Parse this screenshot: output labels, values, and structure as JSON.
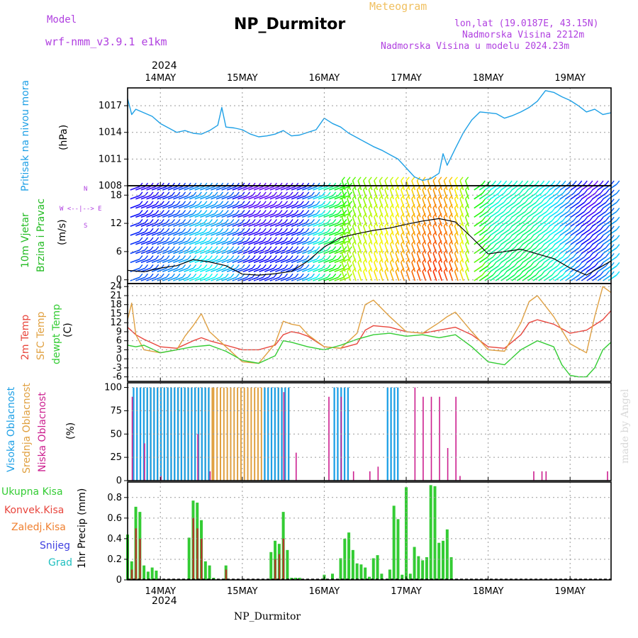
{
  "header": {
    "model_label": "Model",
    "model_value": "wrf-nmm_v3.9.1 e1km",
    "meteogram": "Meteogram",
    "title": "NP_Durmitor",
    "lonlat": "lon,lat (19.0187E, 43.15N)",
    "altitude": "Nadmorska Visina 2212m",
    "altitude_model": "Nadmorska Visina u modelu 2024.23m",
    "footer": "NP_Durmitor",
    "credit": "made by Angel",
    "year": "2024"
  },
  "colors": {
    "pressure": "#1ea0e6",
    "wind_label": "#22bb22",
    "t2m": "#e8453c",
    "sfc": "#e0a040",
    "dewpt": "#33cc33",
    "high_cloud": "#1ea0e6",
    "mid_cloud": "#e0a040",
    "low_cloud": "#cc1f8f",
    "purple_text": "#b040e0",
    "orange_text": "#f0c060"
  },
  "labels": {
    "pressure": [
      "Pritisak na nivou mora",
      "(hPa)"
    ],
    "wind": [
      "10m Vjetar",
      "Brzina i Pravac",
      "(m/s)"
    ],
    "wind_compass": [
      "N",
      "W <--|--> E",
      "S"
    ],
    "temp": [
      "2m Temp",
      "SFC Temp",
      "dewpt Temp",
      "(C)"
    ],
    "cloud": [
      "Visoka Oblacnost",
      "Srednja Oblacnost",
      "Niska Oblacnost",
      "(%)"
    ],
    "precip_legend": [
      "Ukupna Kisa",
      "Konvek.Kisa",
      "Zaledj.Kisa",
      "Snijeg",
      "Grad"
    ],
    "precip_axis": "1hr Precip (mm)"
  },
  "chart_data": [
    {
      "type": "line",
      "panel": "pressure",
      "ylabel": "(hPa)",
      "ylim": [
        1008,
        1019
      ],
      "yticks": [
        1008,
        1011,
        1014,
        1017
      ],
      "x_ticks": [
        "14MAY",
        "15MAY",
        "16MAY",
        "17MAY",
        "18MAY",
        "19MAY"
      ],
      "x_day_start": 13.6,
      "x_day_end": 19.5,
      "series": [
        {
          "name": "Pritisak na nivou mora",
          "x": [
            13.6,
            13.65,
            13.7,
            13.8,
            13.9,
            14.0,
            14.1,
            14.2,
            14.3,
            14.4,
            14.5,
            14.6,
            14.7,
            14.75,
            14.8,
            14.9,
            15.0,
            15.1,
            15.2,
            15.3,
            15.4,
            15.5,
            15.6,
            15.7,
            15.8,
            15.9,
            16.0,
            16.1,
            16.2,
            16.3,
            16.4,
            16.5,
            16.6,
            16.7,
            16.8,
            16.9,
            17.0,
            17.1,
            17.2,
            17.3,
            17.4,
            17.45,
            17.5,
            17.6,
            17.7,
            17.8,
            17.9,
            18.0,
            18.1,
            18.2,
            18.3,
            18.4,
            18.5,
            18.6,
            18.7,
            18.8,
            18.9,
            19.0,
            19.1,
            19.2,
            19.3,
            19.4,
            19.5
          ],
          "values": [
            1017.8,
            1016.0,
            1016.6,
            1016.2,
            1015.8,
            1015.0,
            1014.5,
            1014.0,
            1014.2,
            1013.9,
            1013.8,
            1014.2,
            1014.8,
            1016.8,
            1014.6,
            1014.5,
            1014.3,
            1013.8,
            1013.5,
            1013.6,
            1013.8,
            1014.2,
            1013.6,
            1013.7,
            1014.0,
            1014.3,
            1015.6,
            1015.0,
            1014.6,
            1013.9,
            1013.4,
            1012.9,
            1012.4,
            1012.0,
            1011.5,
            1011.0,
            1010.0,
            1009.0,
            1008.6,
            1008.8,
            1009.4,
            1011.6,
            1010.3,
            1012.2,
            1014.0,
            1015.4,
            1016.3,
            1016.2,
            1016.1,
            1015.6,
            1015.9,
            1016.3,
            1016.8,
            1017.5,
            1018.7,
            1018.5,
            1018.0,
            1017.6,
            1017.0,
            1016.3,
            1016.6,
            1016.0,
            1016.2
          ]
        }
      ]
    },
    {
      "type": "line",
      "panel": "wind",
      "ylabel": "(m/s)",
      "ylim": [
        -0.8,
        20
      ],
      "yticks": [
        0,
        6,
        12,
        18
      ],
      "series": [
        {
          "name": "10m Vjetar",
          "x": [
            13.6,
            13.8,
            14.0,
            14.2,
            14.4,
            14.6,
            14.8,
            15.0,
            15.2,
            15.4,
            15.6,
            15.8,
            16.0,
            16.2,
            16.4,
            16.6,
            16.8,
            17.0,
            17.2,
            17.4,
            17.6,
            17.8,
            18.0,
            18.2,
            18.4,
            18.6,
            18.8,
            19.0,
            19.2,
            19.4,
            19.5
          ],
          "values": [
            2.0,
            1.7,
            2.5,
            3.0,
            4.3,
            3.8,
            3.0,
            1.2,
            1.0,
            1.3,
            1.8,
            4.0,
            7.0,
            9.0,
            9.8,
            10.5,
            11.0,
            11.8,
            12.5,
            13.0,
            12.3,
            9.0,
            5.5,
            6.0,
            6.5,
            5.5,
            4.5,
            2.5,
            1.0,
            3.0,
            4.0
          ]
        }
      ]
    },
    {
      "type": "line",
      "panel": "temperature",
      "ylabel": "(C)",
      "ylim": [
        -7.5,
        25
      ],
      "yticks": [
        -6,
        -3,
        0,
        3,
        6,
        9,
        12,
        15,
        18,
        21,
        24
      ],
      "series": [
        {
          "name": "2m Temp",
          "x": [
            13.6,
            13.7,
            13.8,
            14.0,
            14.2,
            14.4,
            14.5,
            14.6,
            14.8,
            15.0,
            15.2,
            15.4,
            15.5,
            15.6,
            15.7,
            15.8,
            16.0,
            16.2,
            16.4,
            16.5,
            16.6,
            16.8,
            17.0,
            17.2,
            17.4,
            17.5,
            17.6,
            17.8,
            18.0,
            18.2,
            18.4,
            18.5,
            18.6,
            18.8,
            19.0,
            19.2,
            19.4,
            19.5
          ],
          "values": [
            10.5,
            8.0,
            6.5,
            4.0,
            3.5,
            6.0,
            7.0,
            6.0,
            4.5,
            3.0,
            3.0,
            4.5,
            8.0,
            9.0,
            8.5,
            7.5,
            4.0,
            3.5,
            5.0,
            9.5,
            11.0,
            10.5,
            9.0,
            8.5,
            9.5,
            10.0,
            10.5,
            8.0,
            4.0,
            3.5,
            8.0,
            12.0,
            13.0,
            11.5,
            8.5,
            9.5,
            13.0,
            16.0
          ]
        },
        {
          "name": "SFC Temp",
          "x": [
            13.6,
            13.65,
            13.7,
            13.8,
            14.0,
            14.2,
            14.3,
            14.4,
            14.5,
            14.6,
            14.8,
            15.0,
            15.2,
            15.4,
            15.5,
            15.6,
            15.7,
            15.8,
            16.0,
            16.2,
            16.4,
            16.5,
            16.6,
            16.8,
            17.0,
            17.2,
            17.4,
            17.5,
            17.6,
            17.8,
            18.0,
            18.2,
            18.4,
            18.5,
            18.6,
            18.8,
            19.0,
            19.2,
            19.3,
            19.4,
            19.5
          ],
          "values": [
            13.0,
            18.5,
            8.0,
            3.0,
            2.0,
            3.0,
            7.5,
            11.0,
            15.0,
            9.0,
            4.0,
            -1.0,
            -1.5,
            5.0,
            12.5,
            11.5,
            11.0,
            8.0,
            4.0,
            3.5,
            8.5,
            18.0,
            19.5,
            14.0,
            9.0,
            8.5,
            12.0,
            14.0,
            15.5,
            9.0,
            3.0,
            2.5,
            12.0,
            19.0,
            21.0,
            14.0,
            5.0,
            2.0,
            14.0,
            24.0,
            22.0
          ]
        },
        {
          "name": "dewpt Temp",
          "x": [
            13.6,
            13.7,
            13.8,
            14.0,
            14.2,
            14.4,
            14.6,
            14.8,
            15.0,
            15.2,
            15.4,
            15.5,
            15.6,
            15.8,
            16.0,
            16.2,
            16.4,
            16.6,
            16.8,
            17.0,
            17.2,
            17.4,
            17.6,
            17.8,
            18.0,
            18.2,
            18.4,
            18.6,
            18.8,
            18.9,
            19.0,
            19.1,
            19.2,
            19.3,
            19.4,
            19.5
          ],
          "values": [
            4.5,
            4.0,
            4.5,
            2.0,
            3.0,
            4.0,
            4.5,
            2.5,
            -0.5,
            -1.5,
            1.0,
            6.0,
            5.5,
            4.0,
            3.0,
            4.5,
            6.5,
            8.0,
            8.5,
            7.5,
            8.0,
            7.0,
            8.0,
            4.0,
            -1.0,
            -2.0,
            3.0,
            6.0,
            4.0,
            -2.0,
            -5.5,
            -6.0,
            -6.0,
            -3.0,
            3.0,
            5.5
          ]
        }
      ]
    },
    {
      "type": "bar",
      "panel": "cloud",
      "ylabel": "(%)",
      "ylim": [
        0,
        105
      ],
      "yticks": [
        0,
        25,
        50,
        75,
        100
      ],
      "series": [
        {
          "name": "Visoka Oblacnost",
          "ranges": [
            [
              13.65,
              14.6
            ],
            [
              15.25,
              15.55
            ],
            [
              16.1,
              16.3
            ],
            [
              16.75,
              16.9
            ]
          ],
          "value": 100
        },
        {
          "name": "Srednja Oblacnost",
          "ranges": [
            [
              13.8,
              14.65
            ],
            [
              14.65,
              15.3
            ],
            [
              15.4,
              15.6
            ]
          ],
          "value": 100
        },
        {
          "name": "Niska Oblacnost",
          "x": [
            13.65,
            13.8,
            14.0,
            14.45,
            14.6,
            15.5,
            15.65,
            16.05,
            16.2,
            16.35,
            16.55,
            16.65,
            17.1,
            17.2,
            17.3,
            17.4,
            17.5,
            17.6,
            17.65,
            18.55,
            18.65,
            18.7,
            19.45
          ],
          "values": [
            90,
            40,
            5,
            50,
            10,
            95,
            30,
            90,
            90,
            10,
            10,
            15,
            100,
            90,
            90,
            90,
            35,
            90,
            5,
            10,
            10,
            10,
            10
          ]
        }
      ]
    },
    {
      "type": "bar",
      "panel": "precip",
      "ylabel": "1hr Precip (mm)",
      "ylim": [
        0,
        0.95
      ],
      "yticks": [
        0,
        0.2,
        0.4,
        0.6,
        0.8
      ],
      "series": [
        {
          "name": "Ukupna Kisa",
          "x": [
            13.6,
            13.65,
            13.7,
            13.75,
            13.8,
            13.85,
            13.9,
            13.95,
            14.35,
            14.4,
            14.45,
            14.5,
            14.55,
            14.6,
            14.65,
            14.8,
            15.35,
            15.4,
            15.45,
            15.5,
            15.55,
            15.6,
            15.65,
            15.7,
            16.0,
            16.1,
            16.2,
            16.25,
            16.3,
            16.35,
            16.4,
            16.45,
            16.5,
            16.55,
            16.6,
            16.65,
            16.7,
            16.8,
            16.85,
            16.9,
            16.95,
            17.0,
            17.05,
            17.1,
            17.15,
            17.2,
            17.25,
            17.3,
            17.35,
            17.4,
            17.45,
            17.5,
            17.55
          ],
          "values": [
            0.44,
            0.18,
            0.71,
            0.66,
            0.14,
            0.08,
            0.12,
            0.09,
            0.41,
            0.77,
            0.75,
            0.58,
            0.18,
            0.14,
            0.02,
            0.14,
            0.27,
            0.38,
            0.35,
            0.66,
            0.29,
            0.02,
            0.02,
            0.02,
            0.05,
            0.06,
            0.21,
            0.4,
            0.46,
            0.29,
            0.16,
            0.15,
            0.12,
            0.03,
            0.21,
            0.24,
            0.06,
            0.1,
            0.72,
            0.59,
            0.05,
            0.9,
            0.06,
            0.32,
            0.23,
            0.19,
            0.22,
            0.92,
            0.91,
            0.36,
            0.38,
            0.49,
            0.22
          ]
        },
        {
          "name": "Konvek.Kisa",
          "x": [
            13.65,
            13.7,
            13.75,
            14.4,
            14.45,
            14.5,
            14.8,
            15.4,
            15.45,
            15.5
          ],
          "values": [
            0.1,
            0.5,
            0.4,
            0.6,
            0.5,
            0.4,
            0.1,
            0.2,
            0.25,
            0.4
          ]
        }
      ]
    }
  ]
}
